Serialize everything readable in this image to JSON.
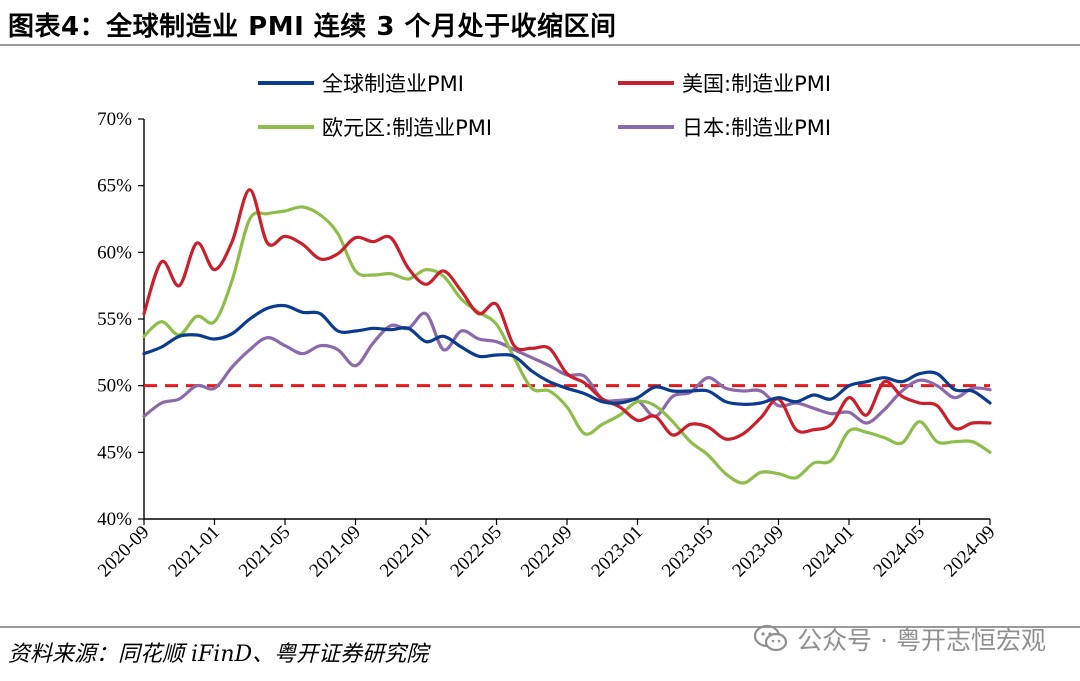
{
  "header": {
    "title": "图表4：全球制造业 PMI 连续 3 个月处于收缩区间"
  },
  "footer": {
    "source": "资料来源：同花顺 iFinD、粤开证券研究院",
    "watermark_text": "公众号 · 粤开志恒宏观",
    "watermark_icon": "wechat-icon"
  },
  "colors": {
    "global": "#0b3b8c",
    "us": "#c8202c",
    "euro": "#8fbd4b",
    "japan": "#8a6aa9",
    "threshold": "#e41a1c"
  },
  "chart_data": {
    "type": "line",
    "ylim": [
      40,
      70
    ],
    "yticks": [
      "40%",
      "45%",
      "50%",
      "55%",
      "60%",
      "65%",
      "70%"
    ],
    "yticks_values": [
      40,
      45,
      50,
      55,
      60,
      65,
      70
    ],
    "xtick_labels": [
      "2020-09",
      "2021-01",
      "2021-05",
      "2021-09",
      "2022-01",
      "2022-05",
      "2022-09",
      "2023-01",
      "2023-05",
      "2023-09",
      "2024-01",
      "2024-05",
      "2024-09"
    ],
    "x": [
      "2020-09",
      "2020-10",
      "2020-11",
      "2020-12",
      "2021-01",
      "2021-02",
      "2021-03",
      "2021-04",
      "2021-05",
      "2021-06",
      "2021-07",
      "2021-08",
      "2021-09",
      "2021-10",
      "2021-11",
      "2021-12",
      "2022-01",
      "2022-02",
      "2022-03",
      "2022-04",
      "2022-05",
      "2022-06",
      "2022-07",
      "2022-08",
      "2022-09",
      "2022-10",
      "2022-11",
      "2022-12",
      "2023-01",
      "2023-02",
      "2023-03",
      "2023-04",
      "2023-05",
      "2023-06",
      "2023-07",
      "2023-08",
      "2023-09",
      "2023-10",
      "2023-11",
      "2023-12",
      "2024-01",
      "2024-02",
      "2024-03",
      "2024-04",
      "2024-05",
      "2024-06",
      "2024-07",
      "2024-08",
      "2024-09"
    ],
    "threshold": 50,
    "legend_position": "top",
    "series": [
      {
        "name": "全球制造业PMI",
        "color_key": "global",
        "values": [
          52.4,
          52.9,
          53.7,
          53.8,
          53.5,
          53.9,
          55.0,
          55.8,
          56.0,
          55.5,
          55.4,
          54.1,
          54.1,
          54.3,
          54.2,
          54.3,
          53.3,
          53.7,
          52.9,
          52.2,
          52.3,
          52.2,
          51.1,
          50.3,
          49.8,
          49.4,
          48.8,
          48.7,
          49.1,
          49.9,
          49.6,
          49.6,
          49.6,
          48.8,
          48.6,
          48.7,
          49.1,
          48.8,
          49.3,
          49.0,
          50.0,
          50.3,
          50.6,
          50.3,
          50.9,
          50.9,
          49.7,
          49.6,
          48.7
        ]
      },
      {
        "name": "美国:制造业PMI",
        "color_key": "us",
        "values": [
          55.4,
          59.3,
          57.5,
          60.7,
          58.7,
          60.8,
          64.7,
          60.7,
          61.2,
          60.6,
          59.5,
          59.9,
          61.1,
          60.8,
          61.1,
          58.8,
          57.6,
          58.6,
          57.1,
          55.4,
          56.1,
          53.0,
          52.8,
          52.8,
          50.9,
          50.2,
          49.0,
          48.4,
          47.4,
          47.7,
          46.3,
          47.1,
          46.9,
          46.0,
          46.4,
          47.6,
          49.0,
          46.7,
          46.7,
          47.1,
          49.1,
          47.8,
          50.3,
          49.2,
          48.7,
          48.5,
          46.8,
          47.2,
          47.2
        ]
      },
      {
        "name": "欧元区:制造业PMI",
        "color_key": "euro",
        "values": [
          53.7,
          54.8,
          53.8,
          55.2,
          54.8,
          57.9,
          62.5,
          62.9,
          63.1,
          63.4,
          62.8,
          61.4,
          58.6,
          58.3,
          58.4,
          58.0,
          58.7,
          58.2,
          56.5,
          55.5,
          54.6,
          52.1,
          49.8,
          49.6,
          48.4,
          46.4,
          47.1,
          47.8,
          48.8,
          48.5,
          47.3,
          45.8,
          44.8,
          43.4,
          42.7,
          43.5,
          43.4,
          43.1,
          44.2,
          44.4,
          46.6,
          46.5,
          46.1,
          45.7,
          47.3,
          45.8,
          45.8,
          45.8,
          45.0
        ]
      },
      {
        "name": "日本:制造业PMI",
        "color_key": "japan",
        "values": [
          47.7,
          48.7,
          49.0,
          50.0,
          49.8,
          51.4,
          52.7,
          53.6,
          53.0,
          52.4,
          53.0,
          52.7,
          51.5,
          53.2,
          54.5,
          54.3,
          55.4,
          52.7,
          54.1,
          53.5,
          53.3,
          52.7,
          52.1,
          51.5,
          50.8,
          50.7,
          49.0,
          48.9,
          48.9,
          47.7,
          49.2,
          49.5,
          50.6,
          49.8,
          49.6,
          49.6,
          48.5,
          48.7,
          48.3,
          47.9,
          48.0,
          47.2,
          48.2,
          49.6,
          50.4,
          50.0,
          49.1,
          49.8,
          49.7
        ]
      }
    ]
  }
}
